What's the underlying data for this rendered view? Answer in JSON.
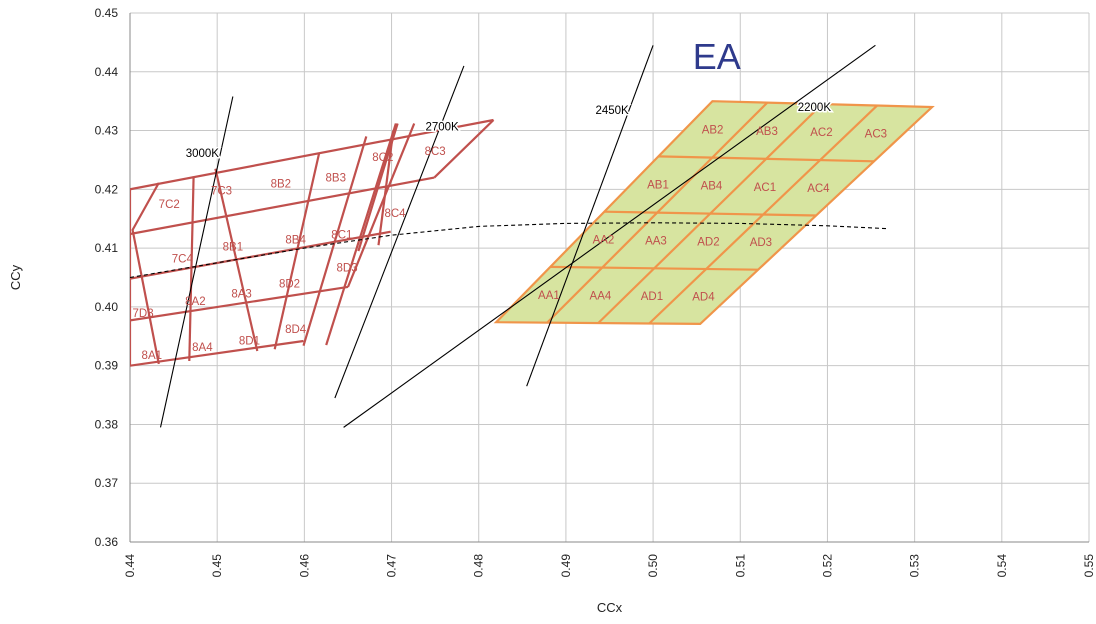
{
  "colors": {
    "grid": "#c8c8c8",
    "axis": "#888888",
    "red_grid": "#c0504d",
    "red_text": "#c0504d",
    "ea_fill": "#d7e4a0",
    "ea_stroke": "#f0954a",
    "ea_text": "#c0504d",
    "ea_title": "#2e3a8c",
    "isotherm": "#000000"
  },
  "chart_data": {
    "type": "scatter",
    "xlabel": "CCx",
    "ylabel": "CCy",
    "xlim": [
      0.44,
      0.55
    ],
    "ylim": [
      0.36,
      0.45
    ],
    "xticks": [
      "0.44",
      "0.45",
      "0.46",
      "0.47",
      "0.48",
      "0.49",
      "0.50",
      "0.51",
      "0.52",
      "0.53",
      "0.54",
      "0.55"
    ],
    "yticks": [
      "0.36",
      "0.37",
      "0.38",
      "0.39",
      "0.40",
      "0.41",
      "0.42",
      "0.43",
      "0.44",
      "0.45"
    ],
    "grid": true,
    "annotation": "EA",
    "isotherms": [
      {
        "label": "3000K",
        "from": [
          0.4435,
          0.3795
        ],
        "to": [
          0.4518,
          0.4358
        ],
        "label_at": [
          0.4483,
          0.4262
        ]
      },
      {
        "label": "2700K",
        "from": [
          0.4635,
          0.3845
        ],
        "to": [
          0.4783,
          0.441
        ],
        "label_at": [
          0.4758,
          0.4307
        ]
      },
      {
        "label": "2450K",
        "from": [
          0.4855,
          0.3865
        ],
        "to": [
          0.5,
          0.4445
        ],
        "label_at": [
          0.4953,
          0.4335
        ]
      },
      {
        "label": "2200K",
        "from": [
          0.4645,
          0.3795
        ],
        "to": [
          0.5255,
          0.4445
        ],
        "label_at": [
          0.5185,
          0.434
        ]
      }
    ],
    "blackbody_locus": [
      [
        0.44,
        0.405
      ],
      [
        0.45,
        0.4075
      ],
      [
        0.46,
        0.41
      ],
      [
        0.47,
        0.4122
      ],
      [
        0.48,
        0.4137
      ],
      [
        0.49,
        0.4142
      ],
      [
        0.5,
        0.4143
      ],
      [
        0.51,
        0.4142
      ],
      [
        0.52,
        0.4138
      ],
      [
        0.527,
        0.4133
      ]
    ],
    "red_bins": {
      "columns": [
        [
          [
            0.44,
            0.39
          ],
          [
            0.44,
            0.42
          ]
        ],
        [
          [
            0.4433,
            0.3903
          ],
          [
            0.4403,
            0.4131
          ],
          [
            0.4433,
            0.4211
          ]
        ],
        [
          [
            0.4468,
            0.3908
          ],
          [
            0.4473,
            0.4222
          ]
        ],
        [
          [
            0.4546,
            0.3925
          ],
          [
            0.4498,
            0.4235
          ]
        ],
        [
          [
            0.4566,
            0.3928
          ],
          [
            0.4617,
            0.4262
          ]
        ],
        [
          [
            0.4599,
            0.3934
          ],
          [
            0.4671,
            0.429
          ]
        ],
        [
          [
            0.4625,
            0.3935
          ],
          [
            0.4705,
            0.4312
          ]
        ],
        [
          [
            0.465,
            0.4034
          ],
          [
            0.4726,
            0.4312
          ]
        ],
        [
          [
            0.4662,
            0.4095
          ],
          [
            0.4707,
            0.4312
          ]
        ],
        [
          [
            0.4685,
            0.4105
          ],
          [
            0.4702,
            0.43
          ]
        ],
        [
          [
            0.4749,
            0.422
          ],
          [
            0.4817,
            0.4318
          ]
        ]
      ],
      "rows": [
        [
          [
            0.44,
            0.39
          ],
          [
            0.4599,
            0.3942
          ]
        ],
        [
          [
            0.44,
            0.3977
          ],
          [
            0.465,
            0.4034
          ]
        ],
        [
          [
            0.44,
            0.4048
          ],
          [
            0.4699,
            0.4128
          ]
        ],
        [
          [
            0.44,
            0.4124
          ],
          [
            0.4749,
            0.422
          ]
        ],
        [
          [
            0.44,
            0.42
          ],
          [
            0.4817,
            0.4318
          ]
        ]
      ],
      "labels": [
        {
          "text": "8A1",
          "at": [
            0.4425,
            0.3918
          ]
        },
        {
          "text": "7D3",
          "at": [
            0.4415,
            0.399
          ]
        },
        {
          "text": "7C4",
          "at": [
            0.446,
            0.4082
          ]
        },
        {
          "text": "7C2",
          "at": [
            0.4445,
            0.4175
          ]
        },
        {
          "text": "8A4",
          "at": [
            0.4483,
            0.3932
          ]
        },
        {
          "text": "8A2",
          "at": [
            0.4475,
            0.401
          ]
        },
        {
          "text": "8B1",
          "at": [
            0.4518,
            0.4103
          ]
        },
        {
          "text": "7C3",
          "at": [
            0.4505,
            0.4198
          ]
        },
        {
          "text": "8D1",
          "at": [
            0.4537,
            0.3943
          ]
        },
        {
          "text": "8A3",
          "at": [
            0.4528,
            0.4023
          ]
        },
        {
          "text": "8B4",
          "at": [
            0.459,
            0.4115
          ]
        },
        {
          "text": "8B2",
          "at": [
            0.4573,
            0.421
          ]
        },
        {
          "text": "8D4",
          "at": [
            0.459,
            0.3962
          ]
        },
        {
          "text": "8D2",
          "at": [
            0.4583,
            0.404
          ]
        },
        {
          "text": "8C1",
          "at": [
            0.4643,
            0.4123
          ]
        },
        {
          "text": "8B3",
          "at": [
            0.4636,
            0.422
          ]
        },
        {
          "text": "8D3",
          "at": [
            0.4649,
            0.4067
          ]
        },
        {
          "text": "8C4",
          "at": [
            0.4704,
            0.416
          ]
        },
        {
          "text": "8C2",
          "at": [
            0.469,
            0.4255
          ]
        },
        {
          "text": "8C3",
          "at": [
            0.475,
            0.4265
          ]
        }
      ]
    },
    "ea_bins": {
      "corners": {
        "bl": [
          0.482,
          0.3974
        ],
        "br": [
          0.5054,
          0.3971
        ],
        "tl": [
          0.5068,
          0.435
        ],
        "tr": [
          0.532,
          0.434
        ]
      },
      "rows": 4,
      "cols": 4,
      "labels": [
        [
          "AA1",
          "AA4",
          "AD1",
          "AD4"
        ],
        [
          "AA2",
          "AA3",
          "AD2",
          "AD3"
        ],
        [
          "AB1",
          "AB4",
          "AC1",
          "AC4"
        ],
        [
          "AB2",
          "AB3",
          "AC2",
          "AC3"
        ]
      ]
    }
  }
}
